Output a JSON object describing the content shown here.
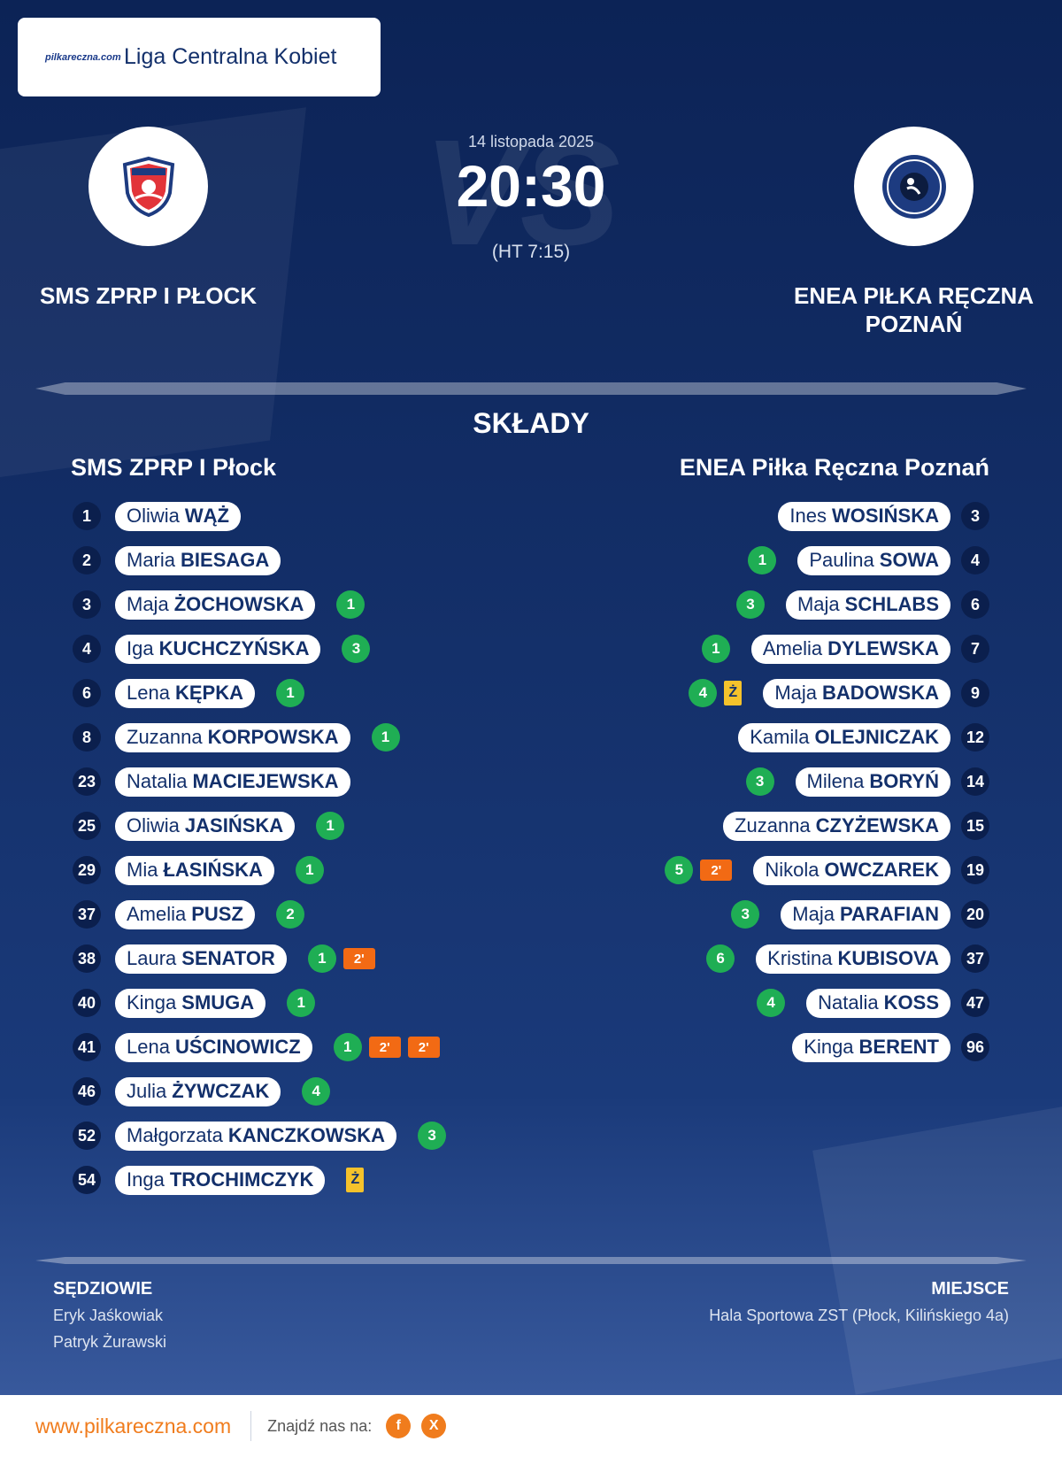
{
  "league": {
    "name": "Liga Centralna Kobiet",
    "logo_text": "pilkareczna.com"
  },
  "match": {
    "date": "14 listopada 2025",
    "score": "20:30",
    "halftime": "(HT 7:15)",
    "vs_text": "VS",
    "home_team": "SMS ZPRP I PŁOCK",
    "away_team": "ENEA PIŁKA RĘCZNA POZNAŃ"
  },
  "lineups": {
    "title": "SKŁADY",
    "home": {
      "name": "SMS ZPRP I Płock",
      "players": [
        {
          "number": "1",
          "first": "Oliwia",
          "last": "WĄŻ",
          "goals": "",
          "yellow": "",
          "suspensions": []
        },
        {
          "number": "2",
          "first": "Maria",
          "last": "BIESAGA",
          "goals": "",
          "yellow": "",
          "suspensions": []
        },
        {
          "number": "3",
          "first": "Maja",
          "last": "ŻOCHOWSKA",
          "goals": "1",
          "yellow": "",
          "suspensions": []
        },
        {
          "number": "4",
          "first": "Iga",
          "last": "KUCHCZYŃSKA",
          "goals": "3",
          "yellow": "",
          "suspensions": []
        },
        {
          "number": "6",
          "first": "Lena",
          "last": "KĘPKA",
          "goals": "1",
          "yellow": "",
          "suspensions": []
        },
        {
          "number": "8",
          "first": "Zuzanna",
          "last": "KORPOWSKA",
          "goals": "1",
          "yellow": "",
          "suspensions": []
        },
        {
          "number": "23",
          "first": "Natalia",
          "last": "MACIEJEWSKA",
          "goals": "",
          "yellow": "",
          "suspensions": []
        },
        {
          "number": "25",
          "first": "Oliwia",
          "last": "JASIŃSKA",
          "goals": "1",
          "yellow": "",
          "suspensions": []
        },
        {
          "number": "29",
          "first": "Mia",
          "last": "ŁASIŃSKA",
          "goals": "1",
          "yellow": "",
          "suspensions": []
        },
        {
          "number": "37",
          "first": "Amelia",
          "last": "PUSZ",
          "goals": "2",
          "yellow": "",
          "suspensions": []
        },
        {
          "number": "38",
          "first": "Laura",
          "last": "SENATOR",
          "goals": "1",
          "yellow": "",
          "suspensions": [
            "2'"
          ]
        },
        {
          "number": "40",
          "first": "Kinga",
          "last": "SMUGA",
          "goals": "1",
          "yellow": "",
          "suspensions": []
        },
        {
          "number": "41",
          "first": "Lena",
          "last": "UŚCINOWICZ",
          "goals": "1",
          "yellow": "",
          "suspensions": [
            "2'",
            "2'"
          ]
        },
        {
          "number": "46",
          "first": "Julia",
          "last": "ŻYWCZAK",
          "goals": "4",
          "yellow": "",
          "suspensions": []
        },
        {
          "number": "52",
          "first": "Małgorzata",
          "last": "KANCZKOWSKA",
          "goals": "3",
          "yellow": "",
          "suspensions": []
        },
        {
          "number": "54",
          "first": "Inga",
          "last": "TROCHIMCZYK",
          "goals": "",
          "yellow": "Ż",
          "suspensions": []
        }
      ]
    },
    "away": {
      "name": "ENEA Piłka Ręczna Poznań",
      "players": [
        {
          "number": "3",
          "first": "Ines",
          "last": "WOSIŃSKA",
          "goals": "",
          "yellow": "",
          "suspensions": []
        },
        {
          "number": "4",
          "first": "Paulina",
          "last": "SOWA",
          "goals": "1",
          "yellow": "",
          "suspensions": []
        },
        {
          "number": "6",
          "first": "Maja",
          "last": "SCHLABS",
          "goals": "3",
          "yellow": "",
          "suspensions": []
        },
        {
          "number": "7",
          "first": "Amelia",
          "last": "DYLEWSKA",
          "goals": "1",
          "yellow": "",
          "suspensions": []
        },
        {
          "number": "9",
          "first": "Maja",
          "last": "BADOWSKA",
          "goals": "4",
          "yellow": "Ż",
          "suspensions": []
        },
        {
          "number": "12",
          "first": "Kamila",
          "last": "OLEJNICZAK",
          "goals": "",
          "yellow": "",
          "suspensions": []
        },
        {
          "number": "14",
          "first": "Milena",
          "last": "BORYŃ",
          "goals": "3",
          "yellow": "",
          "suspensions": []
        },
        {
          "number": "15",
          "first": "Zuzanna",
          "last": "CZYŻEWSKA",
          "goals": "",
          "yellow": "",
          "suspensions": []
        },
        {
          "number": "19",
          "first": "Nikola",
          "last": "OWCZAREK",
          "goals": "5",
          "yellow": "",
          "suspensions": [
            "2'"
          ]
        },
        {
          "number": "20",
          "first": "Maja",
          "last": "PARAFIAN",
          "goals": "3",
          "yellow": "",
          "suspensions": []
        },
        {
          "number": "37",
          "first": "Kristina",
          "last": "KUBISOVA",
          "goals": "6",
          "yellow": "",
          "suspensions": []
        },
        {
          "number": "47",
          "first": "Natalia",
          "last": "KOSS",
          "goals": "4",
          "yellow": "",
          "suspensions": []
        },
        {
          "number": "96",
          "first": "Kinga",
          "last": "BERENT",
          "goals": "",
          "yellow": "",
          "suspensions": []
        }
      ]
    }
  },
  "officials": {
    "title": "SĘDZIOWIE",
    "referees": [
      "Eryk Jaśkowiak",
      "Patryk Żurawski"
    ]
  },
  "venue": {
    "title": "MIEJSCE",
    "name": "Hala Sportowa ZST (Płock, Kilińskiego 4a)"
  },
  "footer": {
    "site": "www.pilkareczna.com",
    "find_us": "Znajdź nas na:",
    "social": [
      "f",
      "X"
    ]
  },
  "colors": {
    "navy": "#13306b",
    "goal_green": "#1fae54",
    "suspension_orange": "#f26a14",
    "yellow_card": "#f5c22b",
    "accent_orange": "#f07c1d"
  }
}
